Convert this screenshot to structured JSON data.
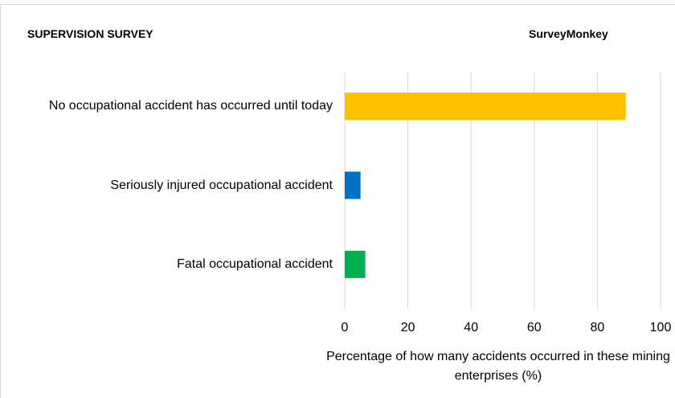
{
  "chart_data": {
    "type": "barh",
    "title": "SUPERVISION SURVEY",
    "source": "SurveyMonkey",
    "categories": [
      "No occupational accident has occurred until today",
      "Seriously injured occupational accident",
      "Fatal occupational accident"
    ],
    "values": [
      89,
      5,
      6.5
    ],
    "colors": [
      "#ffc000",
      "#0070c0",
      "#00b050"
    ],
    "xlabel": "Percentage of how many accidents occurred in these mining enterprises (%)",
    "xlim": [
      0,
      100
    ],
    "xticks": [
      0,
      20,
      40,
      60,
      80,
      100
    ],
    "grid": true
  }
}
